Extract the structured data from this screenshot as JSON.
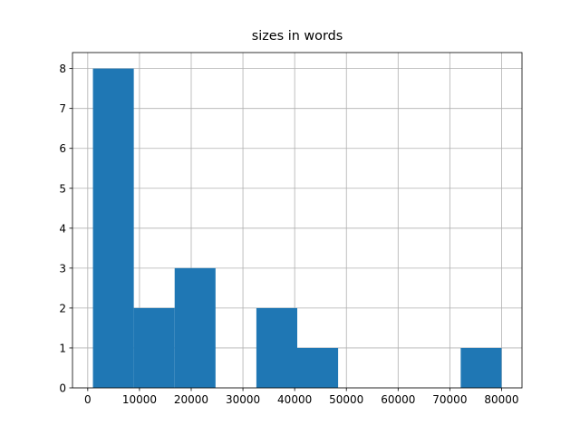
{
  "chart_data": {
    "type": "histogram",
    "title": "sizes in words",
    "bins": [
      1000,
      8900,
      16800,
      24700,
      32600,
      40500,
      48400,
      56300,
      64200,
      72100,
      80000
    ],
    "counts": [
      8,
      2,
      3,
      0,
      2,
      1,
      0,
      0,
      0,
      1
    ],
    "color": "#1f77b4",
    "xlim": [
      -2950,
      83950
    ],
    "xticks": [
      0,
      10000,
      20000,
      30000,
      40000,
      50000,
      60000,
      70000,
      80000
    ],
    "ylim": [
      0,
      8.4
    ],
    "yticks": [
      0,
      1,
      2,
      3,
      4,
      5,
      6,
      7,
      8
    ],
    "grid": true
  }
}
